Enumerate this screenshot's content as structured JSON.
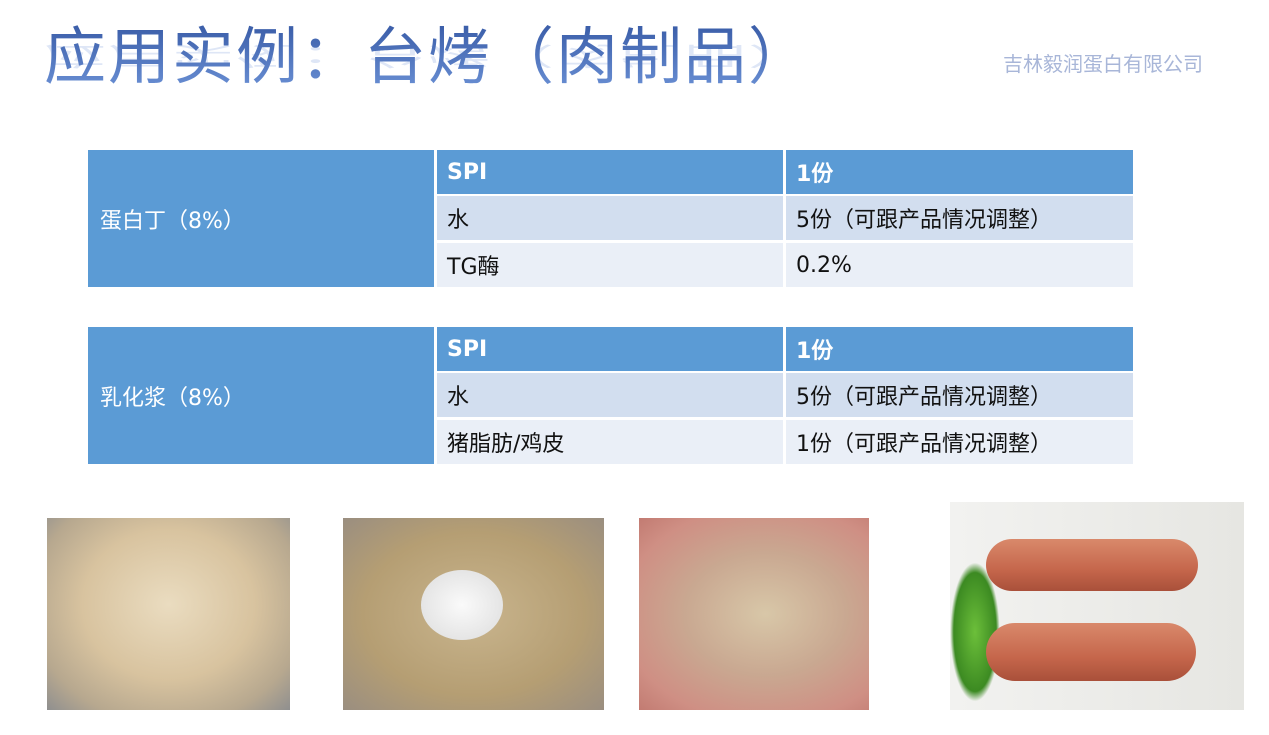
{
  "title": "应用实例：台烤（肉制品）",
  "company": "吉林毅润蛋白有限公司",
  "tables": [
    {
      "label": "蛋白丁（8%）",
      "rows": [
        [
          "SPI",
          "1份"
        ],
        [
          "水",
          "5份（可跟产品情况调整）"
        ],
        [
          "TG酶",
          "0.2%"
        ]
      ]
    },
    {
      "label": "乳化浆（8%）",
      "rows": [
        [
          "SPI",
          "1份"
        ],
        [
          "水",
          "5份（可跟产品情况调整）"
        ],
        [
          "猪脂肪/鸡皮",
          "1份（可跟产品情况调整）"
        ]
      ]
    }
  ],
  "colors": {
    "header": "#5b9bd5",
    "row_dark": "#d2deef",
    "row_light": "#eaeff7",
    "title": "#3a63b4"
  }
}
